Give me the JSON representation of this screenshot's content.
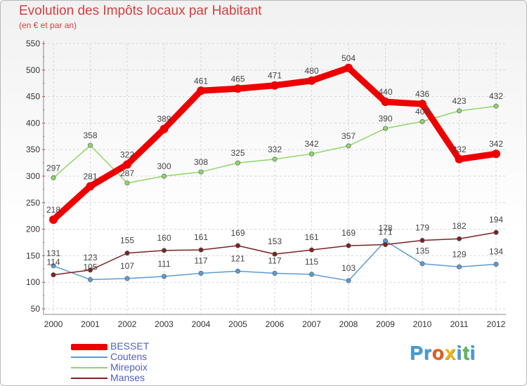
{
  "title": "Evolution des Impôts locaux par Habitant",
  "subtitle": "(en € et par an)",
  "brand": {
    "letters": [
      "P",
      "r",
      "o",
      "x",
      "i",
      "t",
      "i"
    ],
    "colors": [
      "#3aa0d8",
      "#3aa0d8",
      "#e25b1b",
      "#f4b400",
      "#3aa0d8",
      "#5cb85c",
      "#3aa0d8"
    ]
  },
  "chart_data": {
    "type": "line",
    "title": "Evolution des Impôts locaux par Habitant",
    "x": [
      "2000",
      "2001",
      "2002",
      "2003",
      "2004",
      "2005",
      "2006",
      "2007",
      "2008",
      "2009",
      "2010",
      "2011",
      "2012"
    ],
    "ylim": [
      50,
      550
    ],
    "yticks": [
      50,
      100,
      150,
      200,
      250,
      300,
      350,
      400,
      450,
      500,
      550
    ],
    "grid": true,
    "legend_position": "bottom-left",
    "series": [
      {
        "name": "BESSET",
        "color": "#ee0000",
        "values": [
          218,
          281,
          322,
          389,
          461,
          465,
          471,
          480,
          504,
          440,
          436,
          332,
          342
        ]
      },
      {
        "name": "Coutens",
        "color": "#5b9bd5",
        "values": [
          131,
          105,
          107,
          111,
          117,
          121,
          117,
          115,
          103,
          178,
          135,
          129,
          134
        ]
      },
      {
        "name": "Mirepoix",
        "color": "#8fd66a",
        "values": [
          297,
          358,
          287,
          300,
          308,
          325,
          332,
          342,
          357,
          390,
          403,
          423,
          432
        ]
      },
      {
        "name": "Manses",
        "color": "#7b2222",
        "values": [
          114,
          123,
          155,
          160,
          161,
          169,
          153,
          161,
          169,
          171,
          179,
          182,
          194
        ]
      }
    ]
  }
}
